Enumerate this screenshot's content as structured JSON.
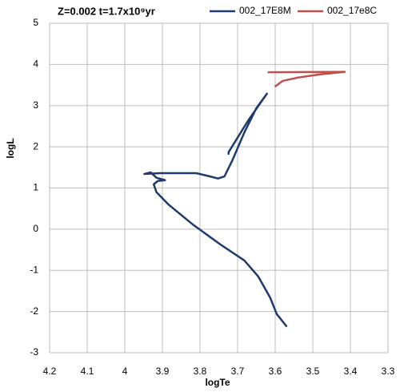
{
  "chart_data": {
    "type": "line",
    "title": "Z=0.002 t=1.7x10⁹yr",
    "x_label": "logTe",
    "y_label": "logL",
    "xlim": [
      4.2,
      3.3
    ],
    "ylim": [
      -3,
      5
    ],
    "xticks": [
      4.2,
      4.1,
      4,
      3.9,
      3.8,
      3.7,
      3.6,
      3.5,
      3.4,
      3.3
    ],
    "yticks": [
      -3,
      -2,
      -1,
      0,
      1,
      2,
      3,
      4,
      5
    ],
    "grid": true,
    "series": [
      {
        "name": "002_17E8M",
        "color": "#1f3a6e",
        "x": [
          3.569,
          3.596,
          3.613,
          3.645,
          3.682,
          3.746,
          3.82,
          3.884,
          3.916,
          3.923,
          3.912,
          3.893,
          3.916,
          3.931,
          3.948,
          3.906,
          3.81,
          3.773,
          3.752,
          3.735,
          3.714,
          3.682,
          3.65,
          3.622,
          3.671,
          3.724,
          3.724
        ],
        "values": [
          -2.37,
          -2.06,
          -1.67,
          -1.15,
          -0.76,
          -0.37,
          0.12,
          0.6,
          0.9,
          1.09,
          1.17,
          1.19,
          1.25,
          1.38,
          1.34,
          1.36,
          1.36,
          1.28,
          1.23,
          1.28,
          1.67,
          2.35,
          2.94,
          3.29,
          2.65,
          1.87,
          1.81
        ]
      },
      {
        "name": "002_17e8C",
        "color": "#c0504d",
        "x": [
          3.601,
          3.58,
          3.54,
          3.48,
          3.415,
          3.62
        ],
        "values": [
          3.46,
          3.6,
          3.68,
          3.76,
          3.82,
          3.81
        ]
      }
    ]
  }
}
